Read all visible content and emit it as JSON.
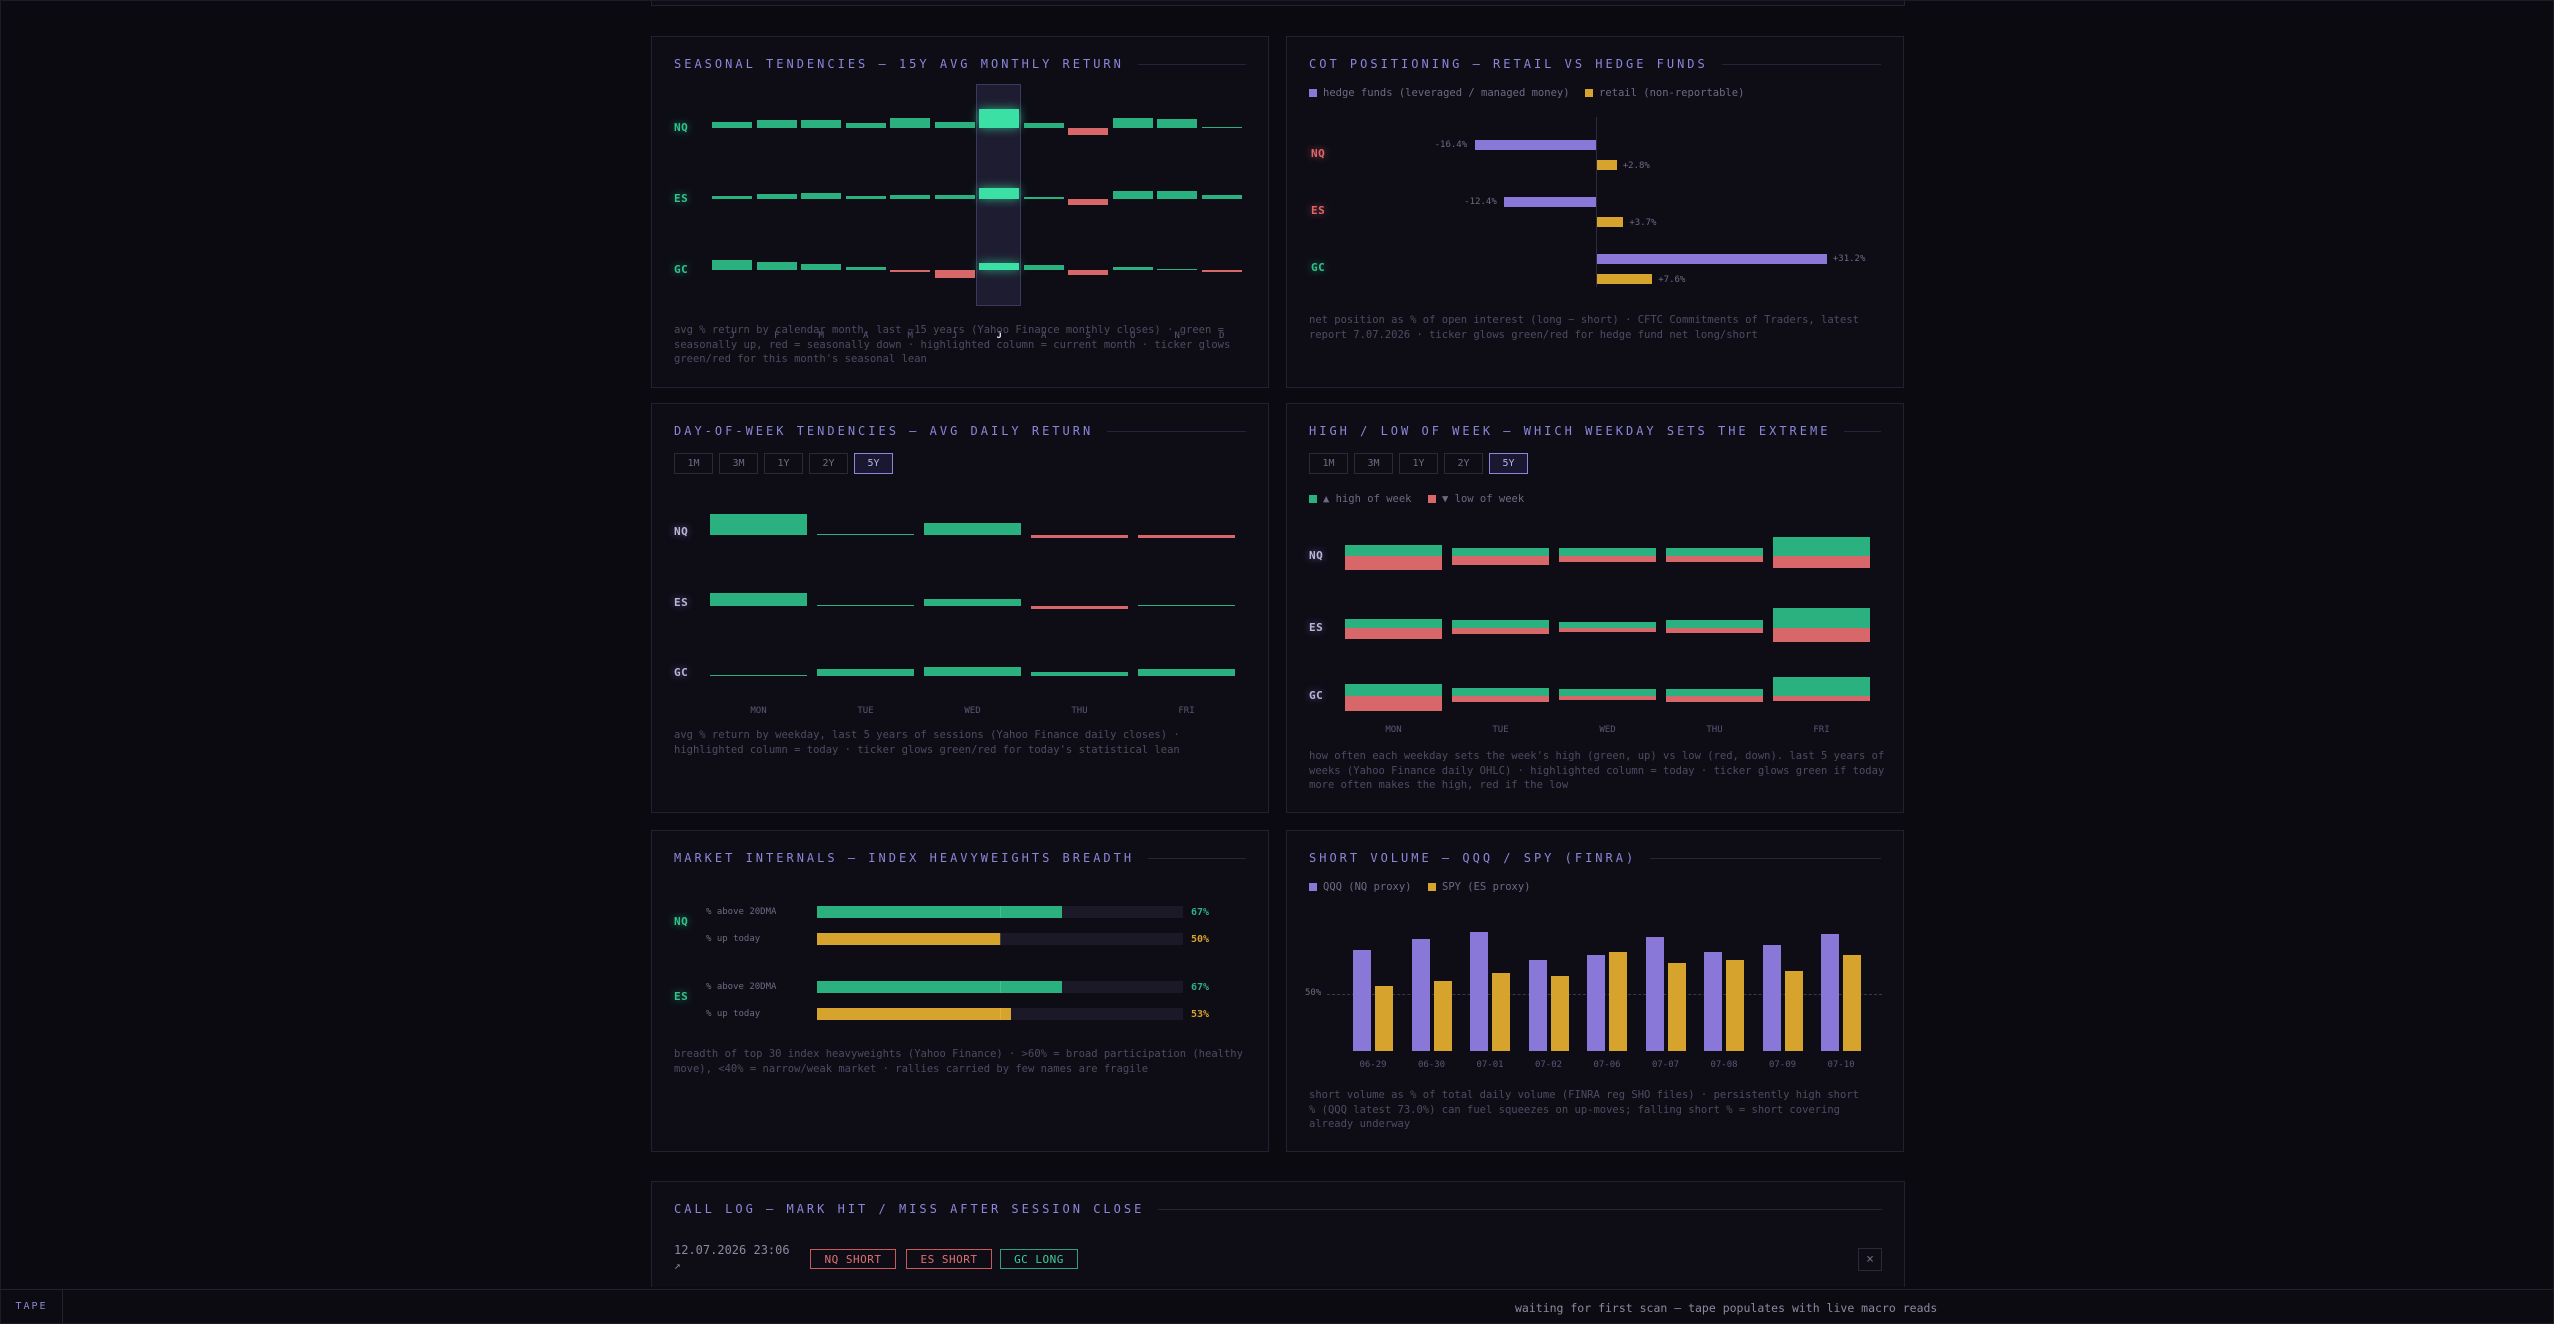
{
  "seasonal": {
    "title": "SEASONAL TENDENCIES — 15Y AVG MONTHLY RETURN",
    "tickers": [
      "NQ",
      "ES",
      "GC"
    ],
    "months": [
      "J",
      "F",
      "M",
      "A",
      "M",
      "J",
      "J",
      "A",
      "S",
      "O",
      "N",
      "D"
    ],
    "current_month_index": 6,
    "values": [
      [
        0.9,
        1.3,
        1.2,
        0.8,
        1.6,
        1.0,
        2.9,
        0.8,
        -1.1,
        1.5,
        1.4,
        0.2
      ],
      [
        0.4,
        0.8,
        1.0,
        0.4,
        0.6,
        0.6,
        1.7,
        0.3,
        -0.9,
        1.3,
        1.3,
        0.6
      ],
      [
        1.5,
        1.2,
        0.9,
        0.5,
        -0.3,
        -1.2,
        1.1,
        0.8,
        -0.8,
        0.4,
        0.2,
        -0.2
      ]
    ],
    "ticker_tone": [
      "g",
      "g",
      "g"
    ],
    "note": "avg % return by calendar month, last ~15 years (Yahoo Finance monthly closes) · green = seasonally up, red = seasonally down · highlighted column = current month · ticker glows green/red for this month's seasonal lean"
  },
  "cot": {
    "title": "COT POSITIONING — RETAIL VS HEDGE FUNDS",
    "legend": [
      "hedge funds (leveraged / managed money)",
      "retail (non-reportable)"
    ],
    "colors": {
      "hedge": "#8a78d8",
      "retail": "#d6a42c"
    },
    "rows": [
      {
        "ticker": "NQ",
        "tone": "r",
        "hedge": -16.4,
        "hedge_label": "-16.4%",
        "retail": 2.8,
        "retail_label": "+2.8%"
      },
      {
        "ticker": "ES",
        "tone": "r",
        "hedge": -12.4,
        "hedge_label": "-12.4%",
        "retail": 3.7,
        "retail_label": "+3.7%"
      },
      {
        "ticker": "GC",
        "tone": "g",
        "hedge": 31.2,
        "hedge_label": "+31.2%",
        "retail": 7.6,
        "retail_label": "+7.6%"
      }
    ],
    "note": "net position as % of open interest (long − short) · CFTC Commitments of Traders, latest report 7.07.2026 · ticker glows green/red for hedge fund net long/short"
  },
  "dow": {
    "title": "DAY-OF-WEEK TENDENCIES — AVG DAILY RETURN",
    "buttons": [
      "1M",
      "3M",
      "1Y",
      "2Y",
      "5Y"
    ],
    "active": 4,
    "days": [
      "MON",
      "TUE",
      "WED",
      "THU",
      "FRI"
    ],
    "tickers": [
      "NQ",
      "ES",
      "GC"
    ],
    "ticker_tone": [
      "n",
      "n",
      "n"
    ],
    "values": [
      [
        0.14,
        0.01,
        0.08,
        -0.02,
        -0.02
      ],
      [
        0.09,
        0.01,
        0.05,
        -0.02,
        0.01
      ],
      [
        0.01,
        0.05,
        0.06,
        0.03,
        0.045
      ]
    ],
    "note": "avg % return by weekday, last 5 years of sessions (Yahoo Finance daily closes) · highlighted column = today · ticker glows green/red for today's statistical lean"
  },
  "hilo": {
    "title": "HIGH / LOW OF WEEK — WHICH WEEKDAY SETS THE EXTREME",
    "buttons": [
      "1M",
      "3M",
      "1Y",
      "2Y",
      "5Y"
    ],
    "active": 4,
    "legend": [
      "▲ high of week",
      "▼ low of week"
    ],
    "days": [
      "MON",
      "TUE",
      "WED",
      "THU",
      "FRI"
    ],
    "tickers": [
      "NQ",
      "ES",
      "GC"
    ],
    "ticker_tone": [
      "n",
      "n",
      "n"
    ],
    "high": [
      [
        13,
        10,
        9,
        10,
        22
      ],
      [
        11,
        10,
        7,
        10,
        24
      ],
      [
        14,
        10,
        8,
        8,
        22
      ]
    ],
    "low": [
      [
        16,
        10,
        7,
        7,
        14
      ],
      [
        13,
        7,
        5,
        6,
        16
      ],
      [
        18,
        7,
        5,
        7,
        6
      ]
    ],
    "note": "how often each weekday sets the week's high (green, up) vs low (red, down). last 5 years of weeks (Yahoo Finance daily OHLC) · highlighted column = today · ticker glows green if today more often makes the high, red if the low"
  },
  "internals": {
    "title": "MARKET INTERNALS — INDEX HEAVYWEIGHTS BREADTH",
    "rows": [
      {
        "ticker": "NQ",
        "metrics": [
          {
            "label": "% above 20DMA",
            "value": 67,
            "text": "67%",
            "color": "green"
          },
          {
            "label": "% up today",
            "value": 50,
            "text": "50%",
            "color": "yellow"
          }
        ]
      },
      {
        "ticker": "ES",
        "metrics": [
          {
            "label": "% above 20DMA",
            "value": 67,
            "text": "67%",
            "color": "green"
          },
          {
            "label": "% up today",
            "value": 53,
            "text": "53%",
            "color": "yellow"
          }
        ]
      }
    ],
    "note": "breadth of top 30 index heavyweights (Yahoo Finance) · >60% = broad participation (healthy move), <40% = narrow/weak market · rallies carried by few names are fragile"
  },
  "short_volume": {
    "title": "SHORT VOLUME — QQQ / SPY (FINRA)",
    "legend": [
      "QQQ (NQ proxy)",
      "SPY (ES proxy)"
    ],
    "dates": [
      "06-29",
      "06-30",
      "07-01",
      "07-02",
      "07-06",
      "07-07",
      "07-08",
      "07-09",
      "07-10"
    ],
    "qqq": [
      67,
      71,
      74,
      63,
      65,
      72,
      66,
      69,
      73
    ],
    "spy": [
      53,
      55,
      58,
      57,
      66,
      62,
      63,
      59,
      65
    ],
    "ref_label": "50%",
    "note": "short volume as % of total daily volume (FINRA reg SHO files) · persistently high short % (QQQ latest 73.0%) can fuel squeezes on up-moves; falling short % = short covering already underway"
  },
  "call_log": {
    "title": "CALL LOG — MARK HIT / MISS AFTER SESSION CLOSE",
    "timestamp": "12.07.2026 23:06",
    "arrow": "↗",
    "tags": [
      {
        "label": "NQ SHORT",
        "tone": "red"
      },
      {
        "label": "ES SHORT",
        "tone": "red"
      },
      {
        "label": "GC LONG",
        "tone": "green"
      }
    ],
    "close_symbol": "×"
  },
  "status": {
    "tape_label": "TAPE",
    "message": "waiting for first scan — tape populates with live macro reads"
  }
}
